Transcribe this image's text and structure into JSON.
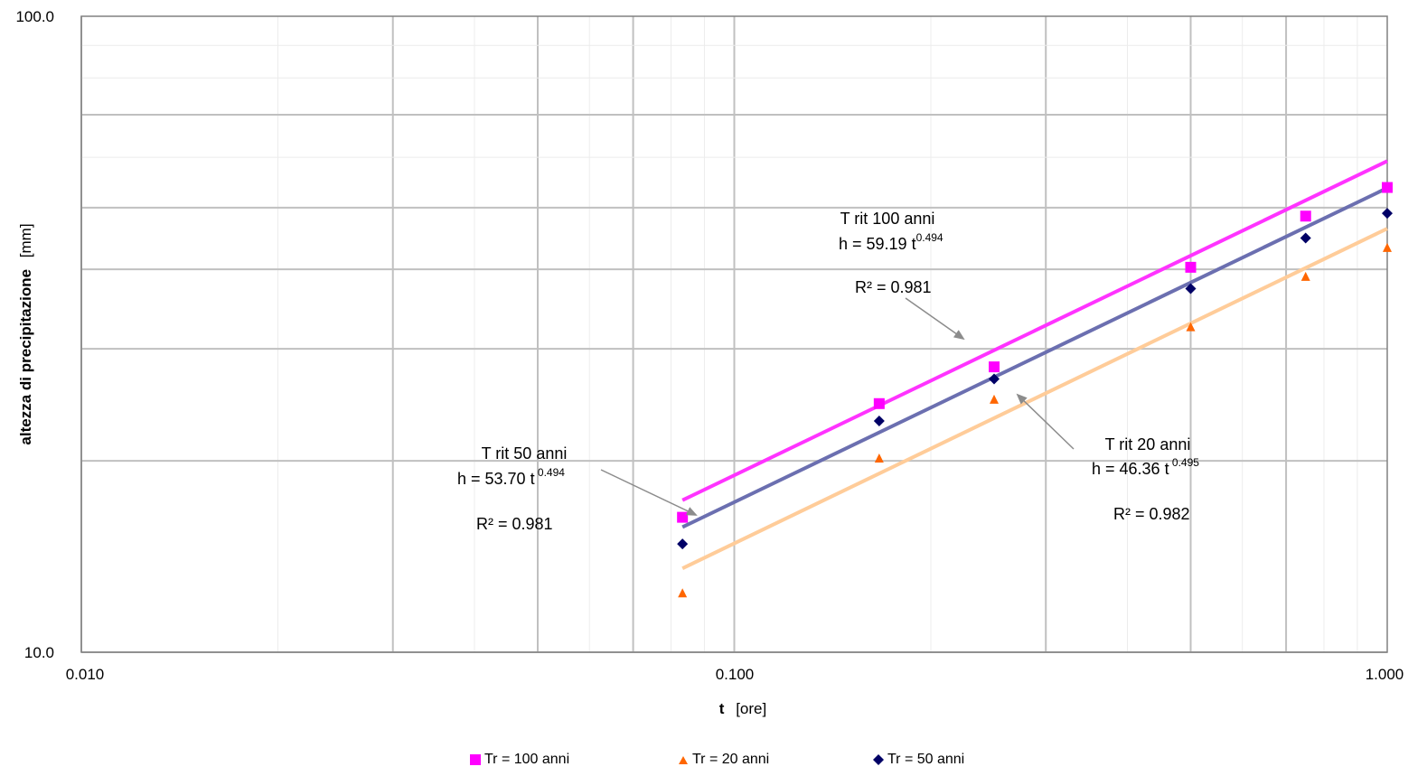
{
  "chart_data": {
    "type": "scatter",
    "title": "",
    "xlabel_bold": "t",
    "xlabel_rest": "[ore]",
    "ylabel_bold": "altezza di precipitazione",
    "ylabel_rest": "[mm]",
    "xscale": "log",
    "yscale": "log",
    "xlim": [
      0.01,
      1.0
    ],
    "ylim": [
      10.0,
      100.0
    ],
    "x_tick_labels": [
      "0.010",
      "0.100",
      "1.000"
    ],
    "y_tick_labels": [
      "10.0",
      "100.0"
    ],
    "grid": true,
    "legend_position": "bottom",
    "series": [
      {
        "name": "Tr = 100 anni",
        "color": "#ff00ff",
        "marker": "square",
        "x": [
          0.0833,
          0.1667,
          0.25,
          0.5,
          0.75,
          1.0
        ],
        "y": [
          16.3,
          24.6,
          28.1,
          40.3,
          48.5,
          53.8
        ]
      },
      {
        "name": "Tr = 20 anni",
        "color": "#ff6600",
        "marker": "triangle",
        "x": [
          0.0833,
          0.1667,
          0.25,
          0.5,
          0.75,
          1.0
        ],
        "y": [
          12.4,
          20.2,
          25.0,
          32.5,
          39.0,
          43.3
        ]
      },
      {
        "name": "Tr = 50 anni",
        "color": "#000066",
        "marker": "diamond",
        "x": [
          0.0833,
          0.1667,
          0.25,
          0.5,
          0.75,
          1.0
        ],
        "y": [
          14.8,
          23.1,
          26.9,
          37.3,
          44.8,
          49.0
        ]
      }
    ],
    "trendlines": [
      {
        "series": "Tr = 100 anni",
        "a": 59.19,
        "b": 0.494,
        "x_range": [
          0.0833,
          1.0
        ],
        "color": "#ff33ff"
      },
      {
        "series": "Tr = 50 anni",
        "a": 53.7,
        "b": 0.494,
        "x_range": [
          0.0833,
          1.0
        ],
        "color": "#6b6fb0"
      },
      {
        "series": "Tr = 20 anni",
        "a": 46.36,
        "b": 0.495,
        "x_range": [
          0.0833,
          1.0
        ],
        "color": "#ffcc99"
      }
    ],
    "annotations": [
      {
        "title": "T rit 100 anni",
        "eq_main": "h = 59.19 t",
        "eq_exp": "0.494",
        "r2": "R² = 0.981"
      },
      {
        "title": "T rit 50 anni",
        "eq_main": "h = 53.70 t",
        "eq_exp": " 0.494",
        "r2": "R² = 0.981"
      },
      {
        "title": "T rit 20 anni",
        "eq_main": "h = 46.36 t",
        "eq_exp": " 0.495",
        "r2": "R² = 0.982"
      }
    ]
  }
}
